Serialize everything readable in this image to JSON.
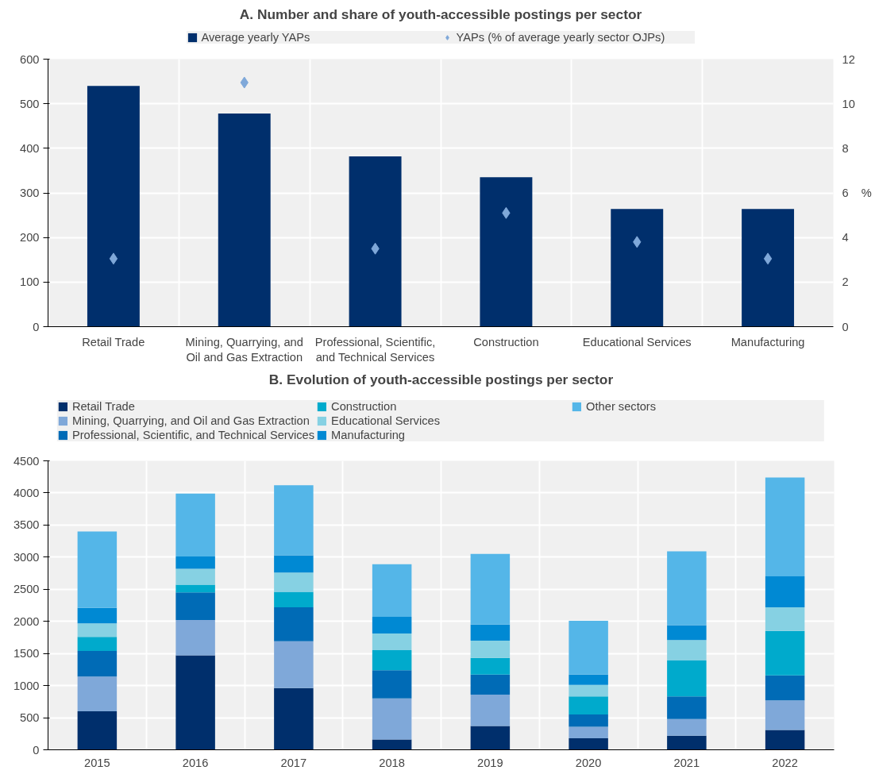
{
  "chart_data": [
    {
      "type": "bar",
      "title": "A. Number and share of youth-accessible postings per sector",
      "categories": [
        "Retail Trade",
        "Mining, Quarrying, and Oil and Gas Extraction",
        "Professional, Scientific, and Technical Services",
        "Construction",
        "Educational Services",
        "Manufacturing"
      ],
      "series": [
        {
          "name": "Average yearly YAPs",
          "color": "#002f6c",
          "values": [
            540,
            478,
            382,
            335,
            264,
            264
          ]
        },
        {
          "name": "YAPs (% of average yearly sector OJPs)",
          "type": "scatter",
          "marker": "diamond",
          "axis": "y2",
          "color": "#7fa8d9",
          "values": [
            3.05,
            10.95,
            3.5,
            5.1,
            3.8,
            3.05
          ]
        }
      ],
      "ylim": [
        0,
        600
      ],
      "yticks": [
        0,
        100,
        200,
        300,
        400,
        500,
        600
      ],
      "y2lim": [
        0,
        12
      ],
      "y2ticks": [
        0,
        2,
        4,
        6,
        8,
        10,
        12
      ],
      "y2label": "%",
      "grid": true,
      "legend": "top"
    },
    {
      "type": "bar",
      "stacked": true,
      "title": "B. Evolution of youth-accessible postings per sector",
      "categories": [
        "2015",
        "2016",
        "2017",
        "2018",
        "2019",
        "2020",
        "2021",
        "2022"
      ],
      "series": [
        {
          "name": "Retail Trade",
          "color": "#002f6c",
          "values": [
            600,
            1470,
            960,
            160,
            370,
            180,
            220,
            310
          ]
        },
        {
          "name": "Mining, Quarrying, and Oil and Gas Extraction",
          "color": "#7fa8d9",
          "values": [
            540,
            550,
            730,
            640,
            490,
            180,
            260,
            460
          ]
        },
        {
          "name": "Professional, Scientific, and Technical Services",
          "color": "#006bb6",
          "values": [
            400,
            430,
            530,
            440,
            310,
            190,
            350,
            390
          ]
        },
        {
          "name": "Construction",
          "color": "#00aacc",
          "values": [
            220,
            120,
            240,
            310,
            260,
            280,
            560,
            690
          ]
        },
        {
          "name": "Educational Services",
          "color": "#86d1e3",
          "values": [
            210,
            250,
            300,
            260,
            270,
            180,
            320,
            370
          ]
        },
        {
          "name": "Manufacturing",
          "color": "#0089d3",
          "values": [
            240,
            190,
            270,
            260,
            250,
            160,
            230,
            480
          ]
        },
        {
          "name": "Other sectors",
          "color": "#54b6e8",
          "values": [
            1190,
            980,
            1090,
            820,
            1100,
            840,
            1150,
            1540
          ]
        }
      ],
      "ylim": [
        0,
        4500
      ],
      "yticks": [
        0,
        500,
        1000,
        1500,
        2000,
        2500,
        3000,
        3500,
        4000,
        4500
      ],
      "grid": true,
      "legend": "top"
    }
  ]
}
